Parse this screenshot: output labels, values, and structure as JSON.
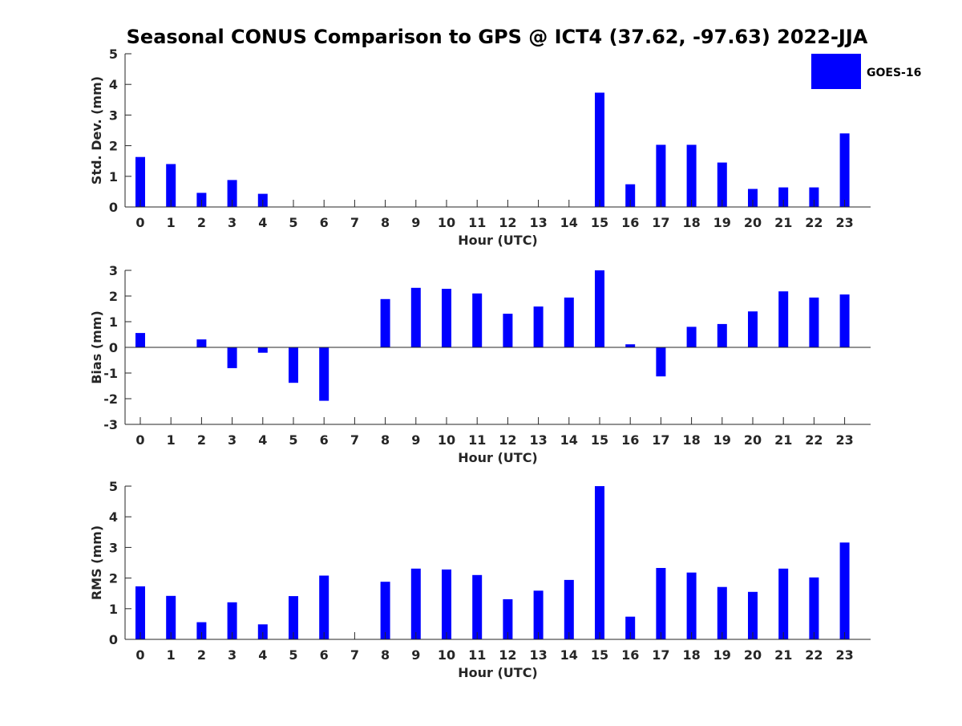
{
  "title": "Seasonal CONUS Comparison to GPS @ ICT4 (37.62, -97.63) 2022-JJA",
  "legend": {
    "label": "GOES-16",
    "placement": "top-right"
  },
  "colors": {
    "bar": "#0000ff",
    "axis": "#262626",
    "title": "#000000"
  },
  "chart_data": [
    {
      "type": "bar",
      "title": "",
      "xlabel": "Hour (UTC)",
      "ylabel": "Std. Dev. (mm)",
      "ylim": [
        0,
        5
      ],
      "yticks": [
        0,
        1,
        2,
        3,
        4,
        5
      ],
      "categories": [
        "0",
        "1",
        "2",
        "3",
        "4",
        "5",
        "6",
        "7",
        "8",
        "9",
        "10",
        "11",
        "12",
        "13",
        "14",
        "15",
        "16",
        "17",
        "18",
        "19",
        "20",
        "21",
        "22",
        "23"
      ],
      "series": [
        {
          "name": "GOES-16",
          "values": [
            1.63,
            1.4,
            0.46,
            0.88,
            0.43,
            0,
            0,
            0,
            0,
            0,
            0,
            0,
            0,
            0,
            0,
            3.73,
            0.74,
            2.03,
            2.03,
            1.45,
            0.59,
            0.64,
            0.64,
            2.4
          ]
        }
      ]
    },
    {
      "type": "bar",
      "title": "",
      "xlabel": "Hour (UTC)",
      "ylabel": "Bias (mm)",
      "ylim": [
        -3,
        3
      ],
      "yticks": [
        -3,
        -2,
        -1,
        0,
        1,
        2,
        3
      ],
      "categories": [
        "0",
        "1",
        "2",
        "3",
        "4",
        "5",
        "6",
        "7",
        "8",
        "9",
        "10",
        "11",
        "12",
        "13",
        "14",
        "15",
        "16",
        "17",
        "18",
        "19",
        "20",
        "21",
        "22",
        "23"
      ],
      "series": [
        {
          "name": "GOES-16",
          "values": [
            0.56,
            0,
            0.31,
            -0.81,
            -0.21,
            -1.38,
            -2.08,
            0,
            1.88,
            2.32,
            2.28,
            2.1,
            1.31,
            1.59,
            1.94,
            3.0,
            0.12,
            -1.13,
            0.8,
            0.91,
            1.4,
            2.18,
            1.94,
            2.06
          ]
        }
      ]
    },
    {
      "type": "bar",
      "title": "",
      "xlabel": "Hour (UTC)",
      "ylabel": "RMS (mm)",
      "ylim": [
        0,
        5
      ],
      "yticks": [
        0,
        1,
        2,
        3,
        4,
        5
      ],
      "categories": [
        "0",
        "1",
        "2",
        "3",
        "4",
        "5",
        "6",
        "7",
        "8",
        "9",
        "10",
        "11",
        "12",
        "13",
        "14",
        "15",
        "16",
        "17",
        "18",
        "19",
        "20",
        "21",
        "22",
        "23"
      ],
      "series": [
        {
          "name": "GOES-16",
          "values": [
            1.73,
            1.42,
            0.56,
            1.21,
            0.49,
            1.41,
            2.08,
            0,
            1.88,
            2.31,
            2.28,
            2.1,
            1.31,
            1.59,
            1.94,
            5.0,
            0.74,
            2.33,
            2.18,
            1.71,
            1.55,
            2.31,
            2.02,
            3.16
          ]
        }
      ]
    }
  ]
}
